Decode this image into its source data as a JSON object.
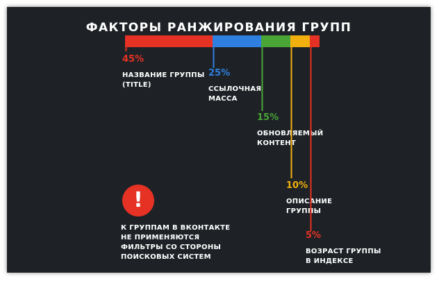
{
  "chart_data": {
    "type": "bar",
    "title": "ФАКТОРЫ РАНЖИРОВАНИЯ ГРУПП",
    "categories": [
      [
        "НАЗВАНИЕ ГРУППЫ",
        "(TITLE)"
      ],
      [
        "ССЫЛОЧНАЯ",
        "МАССА"
      ],
      [
        "ОБНОВЛЯЕМЫЙ",
        "КОНТЕНТ"
      ],
      [
        "ОПИСАНИЕ",
        "ГРУППЫ"
      ],
      [
        "ВОЗРАСТ ГРУППЫ",
        "В ИНДЕКСЕ"
      ]
    ],
    "values": [
      45,
      25,
      15,
      10,
      5
    ],
    "value_labels": [
      "45%",
      "25%",
      "15%",
      "10%",
      "5%"
    ],
    "colors": [
      "#e53224",
      "#2f7fe0",
      "#4aa537",
      "#f2b00f",
      "#e53224"
    ]
  },
  "warning": {
    "icon": "exclamation-icon",
    "symbol": "!",
    "lines": [
      "К ГРУППАМ В ВКОНТАКТЕ",
      "НЕ ПРИМЕНЯЮТСЯ",
      "ФИЛЬТРЫ СО СТОРОНЫ",
      "ПОИСКОВЫХ СИСТЕМ"
    ]
  }
}
